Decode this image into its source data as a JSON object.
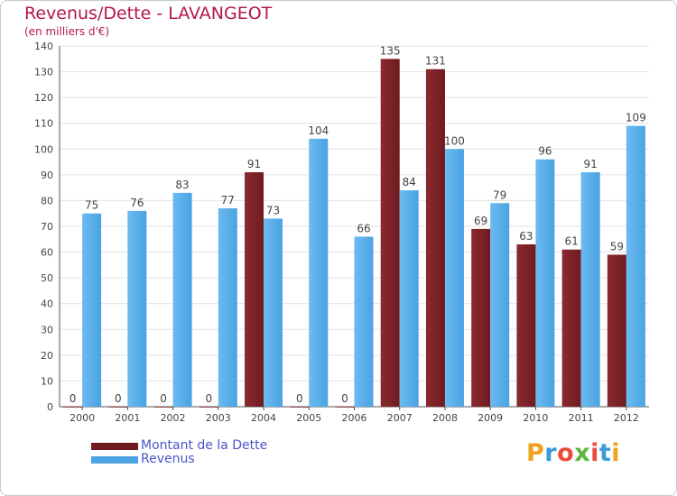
{
  "title": "Revenus/Dette - LAVANGEOT",
  "subtitle": "(en milliers d'€)",
  "brand": "Proxiti",
  "colors": {
    "dette": "#6e1a1f",
    "dette_light": "#8a2a30",
    "revenus": "#4aa3e3",
    "revenus_light": "#6cbaf0",
    "title": "#b3174a",
    "legend_text": "#4a56c8"
  },
  "legend": [
    {
      "label": "Montant de la Dette",
      "color": "#6e1a1f"
    },
    {
      "label": "Revenus",
      "color": "#4aa3e3"
    }
  ],
  "chart_data": {
    "type": "bar",
    "title": "Revenus/Dette - LAVANGEOT",
    "subtitle": "(en milliers d'€)",
    "categories": [
      "2000",
      "2001",
      "2002",
      "2003",
      "2004",
      "2005",
      "2006",
      "2007",
      "2008",
      "2009",
      "2010",
      "2011",
      "2012"
    ],
    "series": [
      {
        "name": "Montant de la Dette",
        "values": [
          0,
          0,
          0,
          0,
          91,
          0,
          0,
          135,
          131,
          69,
          63,
          61,
          59
        ]
      },
      {
        "name": "Revenus",
        "values": [
          75,
          76,
          83,
          77,
          73,
          104,
          66,
          84,
          100,
          79,
          96,
          91,
          109
        ]
      }
    ],
    "ylim": [
      0,
      140
    ],
    "yticks": [
      0,
      10,
      20,
      30,
      40,
      50,
      60,
      70,
      80,
      90,
      100,
      110,
      120,
      130,
      140
    ],
    "grid": true,
    "legend_position": "bottom-left"
  }
}
